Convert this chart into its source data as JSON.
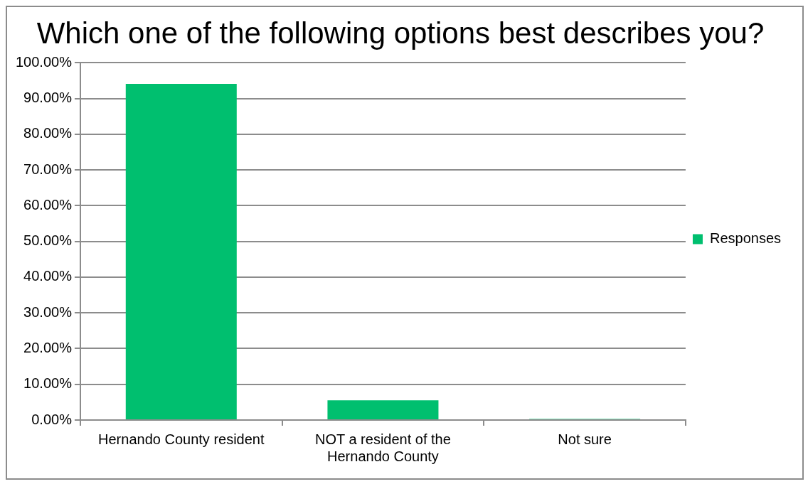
{
  "chart_data": {
    "type": "bar",
    "title": "Which one of the following options best describes you?",
    "categories": [
      "Hernando County resident",
      "NOT a resident of the Hernando County",
      "Not sure"
    ],
    "series": [
      {
        "name": "Responses",
        "color": "#00bf6f",
        "values": [
          94.1,
          5.5,
          0.3
        ]
      }
    ],
    "ylim": [
      0,
      100
    ],
    "yticks": [
      {
        "value": 0,
        "label": "0.00%"
      },
      {
        "value": 10,
        "label": "10.00%"
      },
      {
        "value": 20,
        "label": "20.00%"
      },
      {
        "value": 30,
        "label": "30.00%"
      },
      {
        "value": 40,
        "label": "40.00%"
      },
      {
        "value": 50,
        "label": "50.00%"
      },
      {
        "value": 60,
        "label": "60.00%"
      },
      {
        "value": 70,
        "label": "70.00%"
      },
      {
        "value": 80,
        "label": "80.00%"
      },
      {
        "value": 90,
        "label": "90.00%"
      },
      {
        "value": 100,
        "label": "100.00%"
      }
    ],
    "grid": "y",
    "legend": "right"
  }
}
